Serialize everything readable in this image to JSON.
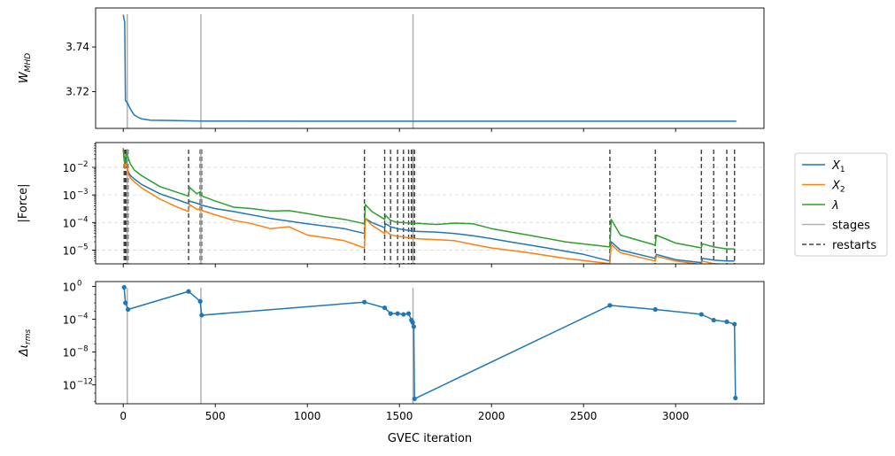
{
  "colors": {
    "blue": "#1f77b4",
    "orange": "#ff7f0e",
    "green": "#2ca02c",
    "stage": "#b0b0b0",
    "restart": "#404040",
    "grid": "#d9d9d9"
  },
  "shared_x": {
    "label": "GVEC iteration",
    "lim": [
      -150,
      3480
    ],
    "ticks": [
      0,
      500,
      1000,
      1500,
      2000,
      2500,
      3000
    ],
    "tick_labels": [
      "0",
      "500",
      "1000",
      "1500",
      "2000",
      "2500",
      "3000"
    ]
  },
  "legend": {
    "placement": "outside-right of middle panel",
    "entries": [
      {
        "label": "X",
        "sub": "1",
        "italic": true,
        "color_key": "blue",
        "style": "solid"
      },
      {
        "label": "X",
        "sub": "2",
        "italic": true,
        "color_key": "orange",
        "style": "solid"
      },
      {
        "label": "λ",
        "sub": "",
        "italic": true,
        "color_key": "green",
        "style": "solid"
      },
      {
        "label": "stages",
        "sub": "",
        "italic": false,
        "color_key": "stage",
        "style": "solid"
      },
      {
        "label": "restarts",
        "sub": "",
        "italic": false,
        "color_key": "restart",
        "style": "dashed"
      }
    ]
  },
  "chart_data": [
    {
      "type": "line",
      "ylabel": "W",
      "ylabel_sub": "MHD",
      "ylim": [
        3.7035,
        3.7575
      ],
      "yscale": "linear",
      "yticks": [
        3.72,
        3.74
      ],
      "ytick_labels": [
        "3.72",
        "3.74"
      ],
      "stages": [
        22,
        422,
        1574
      ],
      "series": [
        {
          "color_key": "blue",
          "x": [
            0,
            8,
            12,
            22,
            40,
            60,
            80,
            100,
            150,
            200,
            300,
            422,
            600,
            1000,
            1574,
            2000,
            2500,
            3000,
            3330
          ],
          "y": [
            3.7545,
            3.751,
            3.716,
            3.715,
            3.712,
            3.7095,
            3.7085,
            3.7078,
            3.7072,
            3.7071,
            3.707,
            3.7068,
            3.7068,
            3.7067,
            3.7067,
            3.7067,
            3.7067,
            3.7067,
            3.7067
          ]
        }
      ]
    },
    {
      "type": "line",
      "ylabel": "|Force|",
      "yscale": "log",
      "ylim_exp": [
        -5.5,
        -1.1
      ],
      "yticks_exp": [
        -5,
        -4,
        -3,
        -2
      ],
      "ytick_labels": [
        "10",
        "10",
        "10",
        "10"
      ],
      "ytick_sups": [
        "−5",
        "−4",
        "−3",
        "−2"
      ],
      "grid": "y-dashed",
      "stages": [
        22,
        422,
        1574
      ],
      "restarts": [
        5,
        10,
        14,
        18,
        22,
        26,
        355,
        418,
        422,
        426,
        1310,
        1420,
        1452,
        1490,
        1522,
        1550,
        1565,
        1572,
        1578,
        1582,
        2643,
        2890,
        3140,
        3207,
        3278,
        3320
      ],
      "series": [
        {
          "name_key": "X1",
          "color_key": "blue",
          "x": [
            0,
            5,
            10,
            15,
            22,
            26,
            40,
            60,
            100,
            200,
            300,
            355,
            360,
            400,
            418,
            422,
            430,
            500,
            600,
            800,
            1000,
            1200,
            1310,
            1315,
            1350,
            1420,
            1425,
            1452,
            1490,
            1522,
            1550,
            1580,
            1700,
            1800,
            1900,
            2000,
            2100,
            2300,
            2500,
            2643,
            2650,
            2700,
            2890,
            2895,
            3000,
            3140,
            3145,
            3207,
            3278,
            3320
          ],
          "y": [
            0.045,
            0.025,
            0.012,
            0.018,
            0.009,
            0.007,
            0.005,
            0.0038,
            0.0024,
            0.0011,
            0.00065,
            0.00048,
            0.0006,
            0.0005,
            0.00045,
            0.00043,
            0.00042,
            0.00032,
            0.00025,
            0.00014,
            9e-05,
            6e-05,
            4e-05,
            0.00014,
            0.0001,
            6.5e-05,
            9e-05,
            7e-05,
            6e-05,
            5.5e-05,
            5.2e-05,
            4.8e-05,
            4.5e-05,
            4e-05,
            3.3e-05,
            2.6e-05,
            2e-05,
            1.2e-05,
            7e-06,
            4e-06,
            2e-05,
            1e-05,
            5e-06,
            7e-06,
            4.5e-06,
            3.5e-06,
            5e-06,
            4.3e-06,
            4e-06,
            4e-06
          ]
        },
        {
          "name_key": "X2",
          "color_key": "orange",
          "x": [
            0,
            5,
            10,
            15,
            22,
            26,
            40,
            60,
            100,
            200,
            300,
            355,
            360,
            400,
            418,
            422,
            430,
            500,
            600,
            700,
            800,
            900,
            1000,
            1100,
            1200,
            1310,
            1315,
            1350,
            1420,
            1425,
            1452,
            1490,
            1522,
            1550,
            1580,
            1700,
            1800,
            1900,
            2000,
            2200,
            2400,
            2643,
            2650,
            2700,
            2890,
            2895,
            3000,
            3140,
            3145,
            3207,
            3278,
            3320
          ],
          "y": [
            0.05,
            0.02,
            0.009,
            0.014,
            0.01,
            0.006,
            0.004,
            0.003,
            0.0018,
            0.0007,
            0.00035,
            0.00025,
            0.00045,
            0.0003,
            0.0003,
            0.00028,
            0.00027,
            0.00019,
            0.00012,
            9e-05,
            6e-05,
            7e-05,
            3.5e-05,
            2.8e-05,
            2.2e-05,
            1.2e-05,
            0.00014,
            8e-05,
            4e-05,
            5e-05,
            3.6e-05,
            3.2e-05,
            3e-05,
            2.8e-05,
            2.6e-05,
            2.4e-05,
            2.2e-05,
            1.6e-05,
            1.2e-05,
            8e-06,
            5e-06,
            3.2e-06,
            1.6e-05,
            8e-06,
            4e-06,
            6e-06,
            4e-06,
            3e-06,
            4e-06,
            3.2e-06,
            3e-06,
            3e-06
          ]
        },
        {
          "name_key": "lambda",
          "color_key": "green",
          "x": [
            0,
            5,
            10,
            15,
            22,
            26,
            40,
            60,
            100,
            200,
            300,
            355,
            360,
            400,
            418,
            422,
            430,
            500,
            600,
            700,
            800,
            900,
            1000,
            1100,
            1200,
            1310,
            1315,
            1350,
            1420,
            1425,
            1452,
            1490,
            1522,
            1550,
            1580,
            1700,
            1800,
            1900,
            2000,
            2200,
            2400,
            2643,
            2650,
            2700,
            2890,
            2895,
            3000,
            3140,
            3145,
            3207,
            3278,
            3320
          ],
          "y": [
            0.05,
            0.02,
            0.014,
            0.03,
            0.03,
            0.022,
            0.013,
            0.008,
            0.005,
            0.002,
            0.0012,
            0.0009,
            0.0019,
            0.0011,
            0.0013,
            0.001,
            0.0009,
            0.0006,
            0.00036,
            0.00032,
            0.00026,
            0.00027,
            0.00021,
            0.00016,
            0.00013,
            9e-05,
            0.00045,
            0.00025,
            0.00013,
            0.00018,
            0.00012,
            0.0001,
            0.0001,
            9.5e-05,
            9.5e-05,
            8.5e-05,
            9.5e-05,
            9e-05,
            6e-05,
            3.5e-05,
            2e-05,
            1.3e-05,
            0.00013,
            3.5e-05,
            1.5e-05,
            3.5e-05,
            1.8e-05,
            1.2e-05,
            1.7e-05,
            1.3e-05,
            1.1e-05,
            1.1e-05
          ]
        }
      ]
    },
    {
      "type": "line",
      "ylabel": "Δι",
      "ylabel_sub": "rms",
      "yscale": "log",
      "ylim_exp": [
        -14.3,
        0.6
      ],
      "yticks_exp": [
        -12,
        -8,
        -4,
        0
      ],
      "ytick_labels": [
        "10",
        "10",
        "10",
        "10"
      ],
      "ytick_sups": [
        "−12",
        "−8",
        "−4",
        "0"
      ],
      "markers": true,
      "stages": [
        22,
        422,
        1574
      ],
      "series": [
        {
          "color_key": "blue",
          "x": [
            5,
            12,
            26,
            355,
            418,
            426,
            1310,
            1420,
            1452,
            1490,
            1522,
            1550,
            1565,
            1572,
            1578,
            1582,
            2643,
            2890,
            3140,
            3207,
            3278,
            3320,
            3325
          ],
          "y_exp": [
            -0.1,
            -2.0,
            -2.8,
            -0.6,
            -1.8,
            -3.5,
            -1.9,
            -2.6,
            -3.3,
            -3.3,
            -3.4,
            -3.3,
            -4.1,
            -4.4,
            -4.9,
            -13.7,
            -2.3,
            -2.8,
            -3.4,
            -4.1,
            -4.3,
            -4.6,
            -13.6
          ]
        }
      ]
    }
  ]
}
